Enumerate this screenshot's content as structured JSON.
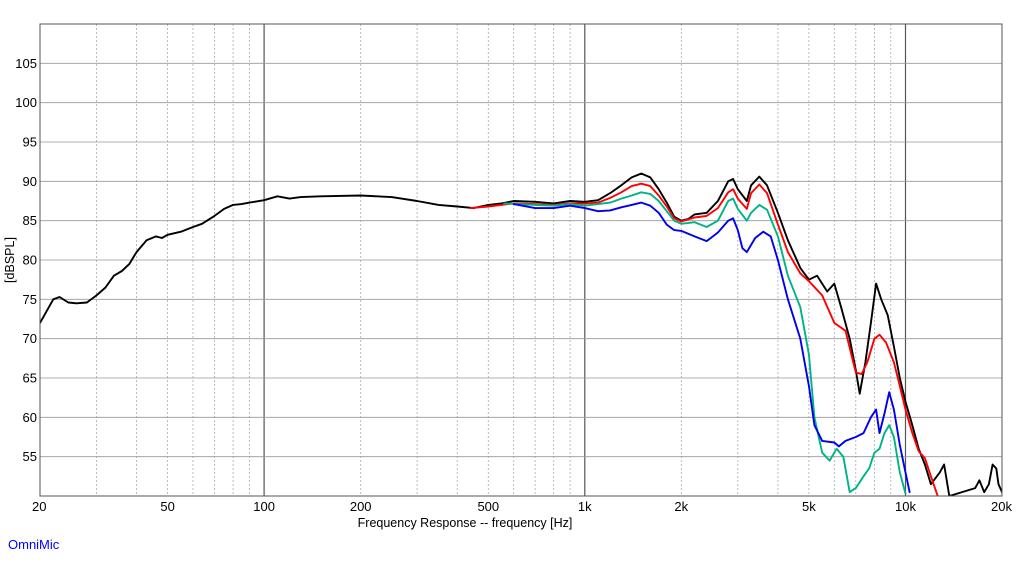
{
  "chart_data": {
    "type": "line",
    "title": "",
    "xlabel": "Frequency Response -- frequency [Hz]",
    "ylabel": "[dBSPL]",
    "xscale": "log",
    "xlim": [
      20,
      20000
    ],
    "ylim": [
      50,
      110
    ],
    "grid": true,
    "legend": "none",
    "x_ticks": [
      20,
      50,
      100,
      200,
      500,
      1000,
      2000,
      5000,
      10000,
      20000
    ],
    "x_tick_labels": [
      "20",
      "50",
      "100",
      "200",
      "500",
      "1k",
      "2k",
      "5k",
      "10k",
      "20k"
    ],
    "y_ticks": [
      55,
      60,
      65,
      70,
      75,
      80,
      85,
      90,
      95,
      100,
      105
    ],
    "y_tick_labels": [
      "55",
      "60",
      "65",
      "70",
      "75",
      "80",
      "85",
      "90",
      "95",
      "100",
      "105"
    ],
    "series": [
      {
        "color": "#000000",
        "points": [
          [
            20,
            72
          ],
          [
            22,
            75
          ],
          [
            23,
            75.3
          ],
          [
            24.5,
            74.6
          ],
          [
            26,
            74.5
          ],
          [
            28,
            74.6
          ],
          [
            30,
            75.5
          ],
          [
            32,
            76.5
          ],
          [
            34,
            78
          ],
          [
            36,
            78.6
          ],
          [
            38,
            79.5
          ],
          [
            40,
            81
          ],
          [
            43,
            82.5
          ],
          [
            46,
            83
          ],
          [
            48,
            82.8
          ],
          [
            50,
            83.2
          ],
          [
            55,
            83.6
          ],
          [
            60,
            84.2
          ],
          [
            64,
            84.6
          ],
          [
            70,
            85.6
          ],
          [
            75,
            86.5
          ],
          [
            80,
            87
          ],
          [
            85,
            87.1
          ],
          [
            90,
            87.3
          ],
          [
            100,
            87.6
          ],
          [
            110,
            88.1
          ],
          [
            120,
            87.8
          ],
          [
            130,
            88
          ],
          [
            150,
            88.1
          ],
          [
            200,
            88.2
          ],
          [
            250,
            88
          ],
          [
            300,
            87.5
          ],
          [
            350,
            87
          ],
          [
            400,
            86.8
          ],
          [
            450,
            86.6
          ],
          [
            500,
            87
          ],
          [
            550,
            87.2
          ],
          [
            600,
            87.5
          ],
          [
            700,
            87.4
          ],
          [
            800,
            87.2
          ],
          [
            900,
            87.5
          ],
          [
            1000,
            87.4
          ],
          [
            1100,
            87.6
          ],
          [
            1200,
            88.5
          ],
          [
            1300,
            89.5
          ],
          [
            1400,
            90.5
          ],
          [
            1500,
            91
          ],
          [
            1600,
            90.5
          ],
          [
            1700,
            89
          ],
          [
            1800,
            87.3
          ],
          [
            1900,
            85.5
          ],
          [
            2000,
            85
          ],
          [
            2100,
            85.2
          ],
          [
            2200,
            85.8
          ],
          [
            2400,
            86
          ],
          [
            2600,
            87.5
          ],
          [
            2800,
            90
          ],
          [
            2900,
            90.3
          ],
          [
            3000,
            89
          ],
          [
            3200,
            87.5
          ],
          [
            3300,
            89.5
          ],
          [
            3500,
            90.6
          ],
          [
            3700,
            89.5
          ],
          [
            4000,
            86
          ],
          [
            4300,
            82.5
          ],
          [
            4700,
            79
          ],
          [
            5000,
            77.5
          ],
          [
            5300,
            78
          ],
          [
            5700,
            76
          ],
          [
            6000,
            77
          ],
          [
            6300,
            74
          ],
          [
            6700,
            70
          ],
          [
            7000,
            66
          ],
          [
            7200,
            63
          ],
          [
            7500,
            67
          ],
          [
            7800,
            72
          ],
          [
            8100,
            77
          ],
          [
            8400,
            75
          ],
          [
            8800,
            73
          ],
          [
            9200,
            69
          ],
          [
            9600,
            65
          ],
          [
            10000,
            62
          ],
          [
            10500,
            59
          ],
          [
            11000,
            56
          ],
          [
            11500,
            54
          ],
          [
            12000,
            51.5
          ],
          [
            12800,
            53
          ],
          [
            13200,
            54
          ],
          [
            13700,
            50
          ],
          [
            16500,
            51
          ],
          [
            17000,
            52
          ],
          [
            17600,
            50.5
          ],
          [
            18200,
            51.5
          ],
          [
            18700,
            54
          ],
          [
            19200,
            53.5
          ],
          [
            19500,
            51.5
          ],
          [
            20000,
            50.5
          ]
        ]
      },
      {
        "color": "#ff0000",
        "points": [
          [
            440,
            86.6
          ],
          [
            500,
            86.8
          ],
          [
            600,
            87.2
          ],
          [
            700,
            87.1
          ],
          [
            800,
            87
          ],
          [
            900,
            87.2
          ],
          [
            1000,
            87.2
          ],
          [
            1100,
            87.3
          ],
          [
            1200,
            87.9
          ],
          [
            1300,
            88.6
          ],
          [
            1400,
            89.4
          ],
          [
            1500,
            89.7
          ],
          [
            1600,
            89.4
          ],
          [
            1700,
            88.2
          ],
          [
            1800,
            86.8
          ],
          [
            1900,
            85.3
          ],
          [
            2000,
            84.9
          ],
          [
            2200,
            85.4
          ],
          [
            2400,
            85.6
          ],
          [
            2600,
            86.6
          ],
          [
            2800,
            88.6
          ],
          [
            2900,
            89
          ],
          [
            3000,
            87.8
          ],
          [
            3200,
            86.5
          ],
          [
            3300,
            88.5
          ],
          [
            3500,
            89.6
          ],
          [
            3700,
            88.5
          ],
          [
            4000,
            84.5
          ],
          [
            4300,
            81
          ],
          [
            4700,
            78.3
          ],
          [
            5000,
            77.3
          ],
          [
            5500,
            75.5
          ],
          [
            6000,
            72
          ],
          [
            6500,
            71
          ],
          [
            7000,
            65.7
          ],
          [
            7300,
            65.5
          ],
          [
            7600,
            67
          ],
          [
            8000,
            70
          ],
          [
            8300,
            70.5
          ],
          [
            8700,
            69.5
          ],
          [
            9200,
            67
          ],
          [
            9600,
            64
          ],
          [
            10000,
            61
          ],
          [
            10500,
            58
          ],
          [
            11000,
            55.7
          ],
          [
            11500,
            54.8
          ],
          [
            12000,
            52.5
          ],
          [
            12600,
            50
          ]
        ]
      },
      {
        "color": "#00b386",
        "points": [
          [
            560,
            87.2
          ],
          [
            700,
            87
          ],
          [
            800,
            86.9
          ],
          [
            900,
            87.1
          ],
          [
            1000,
            86.9
          ],
          [
            1200,
            87.3
          ],
          [
            1300,
            87.8
          ],
          [
            1400,
            88.2
          ],
          [
            1500,
            88.6
          ],
          [
            1600,
            88.4
          ],
          [
            1700,
            87.5
          ],
          [
            1800,
            86.2
          ],
          [
            1900,
            85
          ],
          [
            2000,
            84.6
          ],
          [
            2200,
            84.8
          ],
          [
            2400,
            84.2
          ],
          [
            2600,
            85
          ],
          [
            2800,
            87.5
          ],
          [
            2900,
            87.8
          ],
          [
            3000,
            86.5
          ],
          [
            3200,
            85
          ],
          [
            3300,
            86
          ],
          [
            3500,
            87
          ],
          [
            3700,
            86.4
          ],
          [
            4000,
            83
          ],
          [
            4300,
            78
          ],
          [
            4700,
            74
          ],
          [
            5000,
            68
          ],
          [
            5200,
            60
          ],
          [
            5500,
            55.5
          ],
          [
            5800,
            54.5
          ],
          [
            6100,
            56
          ],
          [
            6400,
            55
          ],
          [
            6700,
            50.5
          ],
          [
            7000,
            51
          ],
          [
            7400,
            52.5
          ],
          [
            7700,
            53.5
          ],
          [
            8000,
            55.5
          ],
          [
            8300,
            56
          ],
          [
            8600,
            58
          ],
          [
            8900,
            59
          ],
          [
            9200,
            57.5
          ],
          [
            9600,
            53
          ],
          [
            10000,
            50.3
          ]
        ]
      },
      {
        "color": "#0000ee",
        "points": [
          [
            600,
            87.1
          ],
          [
            700,
            86.6
          ],
          [
            800,
            86.6
          ],
          [
            900,
            86.9
          ],
          [
            1000,
            86.6
          ],
          [
            1100,
            86.2
          ],
          [
            1200,
            86.3
          ],
          [
            1300,
            86.7
          ],
          [
            1400,
            87
          ],
          [
            1500,
            87.3
          ],
          [
            1600,
            86.9
          ],
          [
            1700,
            86
          ],
          [
            1800,
            84.5
          ],
          [
            1900,
            83.8
          ],
          [
            2000,
            83.7
          ],
          [
            2200,
            83
          ],
          [
            2400,
            82.4
          ],
          [
            2600,
            83.5
          ],
          [
            2800,
            85
          ],
          [
            2900,
            85.3
          ],
          [
            3000,
            83.8
          ],
          [
            3100,
            81.5
          ],
          [
            3200,
            81
          ],
          [
            3400,
            82.8
          ],
          [
            3600,
            83.6
          ],
          [
            3800,
            83
          ],
          [
            4000,
            80
          ],
          [
            4300,
            75
          ],
          [
            4700,
            70
          ],
          [
            5000,
            64
          ],
          [
            5200,
            59
          ],
          [
            5500,
            57
          ],
          [
            6000,
            56.8
          ],
          [
            6200,
            56.3
          ],
          [
            6500,
            57
          ],
          [
            7000,
            57.5
          ],
          [
            7400,
            58
          ],
          [
            7800,
            60
          ],
          [
            8100,
            61
          ],
          [
            8300,
            58
          ],
          [
            8600,
            60.5
          ],
          [
            8900,
            63.2
          ],
          [
            9200,
            61
          ],
          [
            9600,
            56.5
          ],
          [
            10000,
            53
          ],
          [
            10300,
            50.5
          ]
        ]
      }
    ]
  },
  "brand": {
    "text": "OmniMic"
  }
}
